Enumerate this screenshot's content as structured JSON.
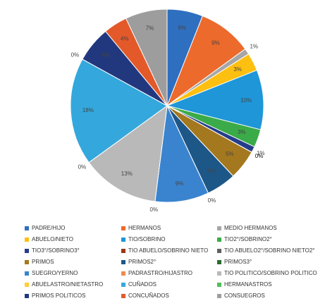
{
  "chart_data": {
    "type": "pie",
    "categories": [
      "PADRE/HIJO",
      "HERMANOS",
      "MEDIO HERMANOS",
      "ABUELO/NIETO",
      "TIO/SOBRINO",
      "TIO2°/SOBRINO2°",
      "TIO3°/SOBRINO3°",
      "TIO ABUELO/SOBRINO NIETO",
      "TIO ABUELO2°/SOBRINO NIETO2°",
      "PRIMOS",
      "PRIMOS2°",
      "PRIMOS3°",
      "SUEGRO/YERNO",
      "PADRASTRO/HIJASTRO",
      "TIO POLITICO/SOBRINO POLITICO",
      "ABUELASTRO/NIETASTRO",
      "CUÑADOS",
      "HERMANASTROS",
      "PRIMOS POLITICOS",
      "CONCUÑADOS",
      "CONSUEGROS"
    ],
    "values": [
      6,
      9,
      1,
      3,
      10,
      3,
      1,
      0,
      0,
      5,
      5,
      0,
      9,
      0,
      13,
      0,
      18,
      0,
      6,
      4,
      7
    ],
    "value_labels": [
      "6%",
      "9%",
      "1%",
      "3%",
      "10%",
      "3%",
      "1%",
      "0%",
      "0%",
      "5%",
      "5%",
      "0%",
      "9%",
      "0%",
      "13%",
      "0%",
      "18%",
      "0%",
      "6%",
      "4%",
      "7%"
    ],
    "colors": [
      "#2f6fc0",
      "#ec6a2c",
      "#a6a6a6",
      "#fdbf10",
      "#1f96d8",
      "#3aab48",
      "#253d8a",
      "#9b3818",
      "#5f5f5f",
      "#a4781e",
      "#1d5788",
      "#2a6b2d",
      "#3a84cf",
      "#f08a4e",
      "#b9b9b9",
      "#ffcd35",
      "#34a8dc",
      "#50bd5a",
      "#22387e",
      "#e4592a",
      "#9d9d9d"
    ]
  }
}
